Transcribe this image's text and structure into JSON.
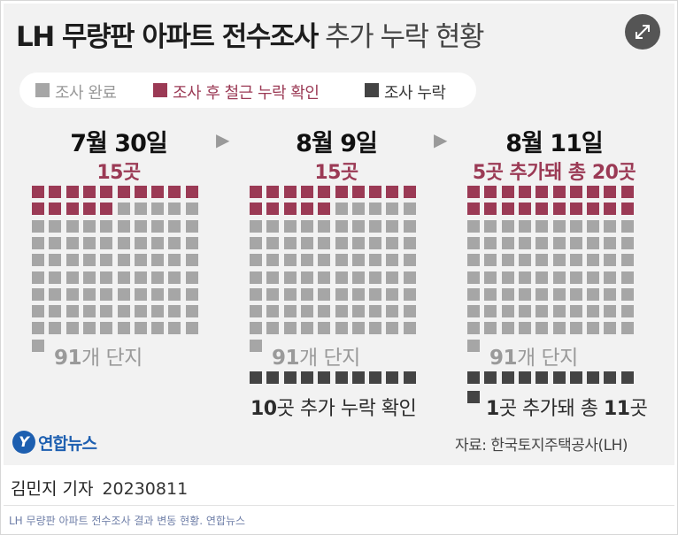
{
  "title": {
    "bold": "LH 무량판 아파트 전수조사",
    "light": "추가 누락 현황"
  },
  "legend": [
    {
      "label": "조사 완료",
      "color": "#a6a6a6",
      "text_color": "#999999"
    },
    {
      "label": "조사 후 철근 누락 확인",
      "color": "#9b3a55",
      "text_color": "#9b3a55"
    },
    {
      "label": "조사 누락",
      "color": "#444444",
      "text_color": "#3a3a3a"
    }
  ],
  "arrow_glyph": "▶",
  "panels": [
    {
      "date": "7월 30일",
      "count_label": "15곳",
      "surveyed_label": {
        "num": "91",
        "unit": "개 단지"
      },
      "missing_label": ""
    },
    {
      "date": "8월 9일",
      "count_label": "15곳",
      "surveyed_label": {
        "num": "91",
        "unit": "개 단지"
      },
      "missing_label": {
        "num": "10",
        "unit": "곳 추가 누락 확인"
      }
    },
    {
      "date": "8월 11일",
      "count_label": "5곳 추가돼 총 20곳",
      "surveyed_label": {
        "num": "91",
        "unit": "개 단지"
      },
      "missing_label": {
        "prefix": "1",
        "mid": "곳 추가돼 총 ",
        "num": "11",
        "unit": "곳"
      }
    }
  ],
  "chart_data": {
    "type": "waffle",
    "categories": [
      "7월 30일",
      "8월 9일",
      "8월 11일"
    ],
    "series": [
      {
        "name": "조사 완료",
        "values": [
          91,
          91,
          91
        ],
        "color": "#a6a6a6"
      },
      {
        "name": "조사 후 철근 누락 확인",
        "values": [
          15,
          15,
          20
        ],
        "color": "#9b3a55"
      },
      {
        "name": "조사 누락",
        "values": [
          0,
          10,
          11
        ],
        "color": "#444444"
      }
    ],
    "grid_columns": 10
  },
  "logo": {
    "mark": "Y",
    "text": "연합뉴스"
  },
  "source": "자료: 한국토지주택공사(LH)",
  "byline": {
    "reporter": "김민지 기자",
    "date": "20230811"
  },
  "caption": "LH 무량판 아파트 전수조사 결과 변동 현황. 연합뉴스",
  "colors": {
    "accent": "#9b3a55",
    "surveyed": "#a6a6a6",
    "missing": "#444444"
  }
}
